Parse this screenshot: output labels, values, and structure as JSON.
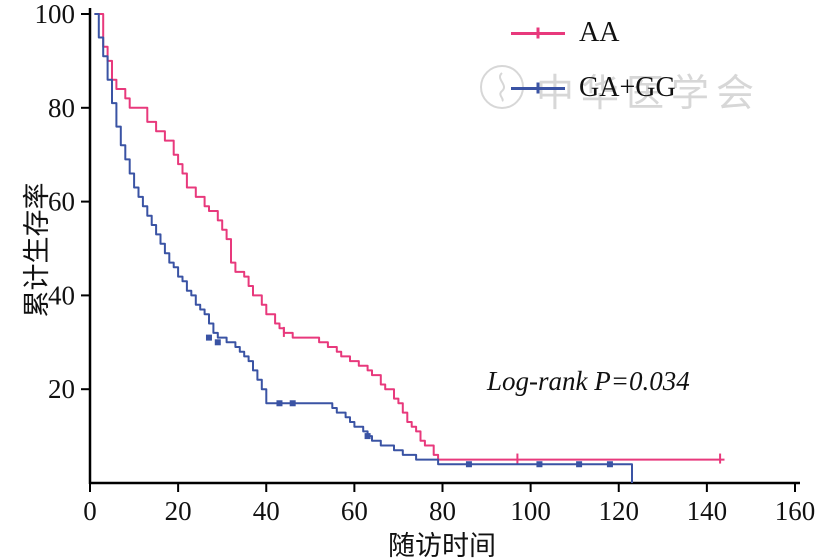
{
  "chart_data": {
    "type": "line",
    "subtype": "kaplan-meier-step",
    "title": "",
    "xlabel": "随访时间",
    "ylabel": "累计生存率",
    "xlim": [
      0,
      160
    ],
    "ylim": [
      0,
      100
    ],
    "x_ticks": [
      0,
      20,
      40,
      60,
      80,
      100,
      120,
      140,
      160
    ],
    "y_ticks": [
      20,
      40,
      60,
      80,
      100
    ],
    "grid": false,
    "legend_position": "top-right",
    "annotation": "Log-rank P=0.034",
    "watermark": "中华医学会",
    "series": [
      {
        "name": "AA",
        "color": "#e8397c",
        "marker": "tick",
        "points": [
          [
            1,
            100
          ],
          [
            3,
            93
          ],
          [
            4,
            90
          ],
          [
            5,
            86
          ],
          [
            6,
            84
          ],
          [
            8,
            82
          ],
          [
            9,
            80
          ],
          [
            13,
            77
          ],
          [
            15,
            75
          ],
          [
            17,
            73
          ],
          [
            19,
            70
          ],
          [
            20,
            68
          ],
          [
            21,
            66
          ],
          [
            22,
            63
          ],
          [
            24,
            61
          ],
          [
            26,
            59
          ],
          [
            27,
            58
          ],
          [
            29,
            56
          ],
          [
            30,
            54
          ],
          [
            31,
            52
          ],
          [
            32,
            47
          ],
          [
            33,
            45
          ],
          [
            35,
            44
          ],
          [
            36,
            42
          ],
          [
            37,
            40
          ],
          [
            39,
            38
          ],
          [
            40,
            36
          ],
          [
            42,
            34
          ],
          [
            43,
            33
          ],
          [
            44,
            32
          ],
          [
            46,
            31
          ],
          [
            52,
            30
          ],
          [
            54,
            29
          ],
          [
            56,
            28
          ],
          [
            57,
            27
          ],
          [
            59,
            26
          ],
          [
            61,
            25
          ],
          [
            63,
            24
          ],
          [
            64,
            23
          ],
          [
            66,
            21
          ],
          [
            67,
            20
          ],
          [
            69,
            18
          ],
          [
            70,
            17
          ],
          [
            71,
            15
          ],
          [
            72,
            13
          ],
          [
            73,
            12
          ],
          [
            74,
            11
          ],
          [
            75,
            9
          ],
          [
            76,
            8
          ],
          [
            78,
            6
          ],
          [
            79,
            5
          ],
          [
            144,
            5
          ]
        ],
        "censors": [
          [
            44,
            32
          ],
          [
            97,
            5
          ],
          [
            143,
            5
          ]
        ]
      },
      {
        "name": "GA+GG",
        "color": "#3a53a4",
        "marker": "square",
        "points": [
          [
            1,
            100
          ],
          [
            2,
            95
          ],
          [
            3,
            91
          ],
          [
            4,
            86
          ],
          [
            5,
            81
          ],
          [
            6,
            76
          ],
          [
            7,
            72
          ],
          [
            8,
            69
          ],
          [
            9,
            66
          ],
          [
            10,
            63
          ],
          [
            11,
            61
          ],
          [
            12,
            59
          ],
          [
            13,
            57
          ],
          [
            14,
            55
          ],
          [
            15,
            53
          ],
          [
            16,
            51
          ],
          [
            17,
            49
          ],
          [
            18,
            47
          ],
          [
            19,
            46
          ],
          [
            20,
            44
          ],
          [
            21,
            43
          ],
          [
            22,
            41
          ],
          [
            23,
            40
          ],
          [
            24,
            38
          ],
          [
            25,
            37
          ],
          [
            26,
            36
          ],
          [
            27,
            34
          ],
          [
            28,
            32
          ],
          [
            29,
            31
          ],
          [
            31,
            30
          ],
          [
            33,
            29
          ],
          [
            34,
            28
          ],
          [
            35,
            27
          ],
          [
            36,
            26
          ],
          [
            37,
            24
          ],
          [
            38,
            22
          ],
          [
            39,
            20
          ],
          [
            40,
            17
          ],
          [
            55,
            16
          ],
          [
            56,
            15
          ],
          [
            58,
            14
          ],
          [
            59,
            13
          ],
          [
            60,
            12
          ],
          [
            62,
            11
          ],
          [
            63,
            10
          ],
          [
            64,
            9
          ],
          [
            66,
            8
          ],
          [
            69,
            7
          ],
          [
            71,
            6
          ],
          [
            74,
            5
          ],
          [
            79,
            4
          ],
          [
            122,
            4
          ],
          [
            123,
            0
          ]
        ],
        "censors": [
          [
            27,
            31
          ],
          [
            29,
            30
          ],
          [
            43,
            17
          ],
          [
            46,
            17
          ],
          [
            63,
            10
          ],
          [
            86,
            4
          ],
          [
            102,
            4
          ],
          [
            111,
            4
          ],
          [
            118,
            4
          ]
        ]
      }
    ]
  }
}
